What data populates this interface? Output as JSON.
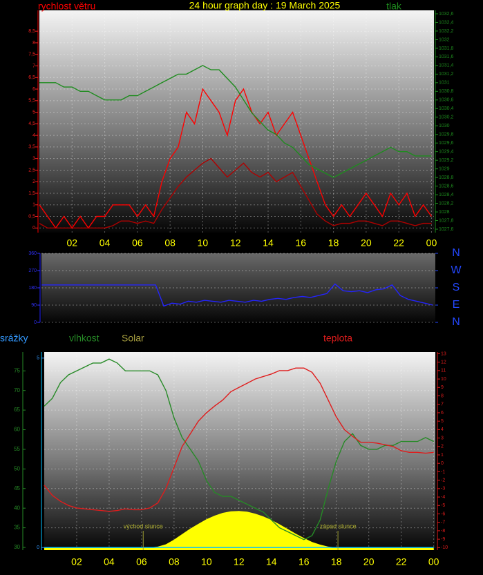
{
  "chart_data": [
    {
      "type": "line",
      "title": "24 hour graph day : 19 March 2025",
      "grid": true,
      "x": [
        0,
        0.5,
        1,
        1.5,
        2,
        2.5,
        3,
        3.5,
        4,
        4.5,
        5,
        5.5,
        6,
        6.5,
        7,
        7.5,
        8,
        8.5,
        9,
        9.5,
        10,
        10.5,
        11,
        11.5,
        12,
        12.5,
        13,
        13.5,
        14,
        14.5,
        15,
        15.5,
        16,
        16.5,
        17,
        17.5,
        18,
        18.5,
        19,
        19.5,
        20,
        20.5,
        21,
        21.5,
        22,
        22.5,
        23,
        23.5,
        24
      ],
      "xlim": [
        0,
        24.15
      ],
      "xticks": [
        {
          "value": 2,
          "label": "02"
        },
        {
          "value": 4,
          "label": "04"
        },
        {
          "value": 6,
          "label": "06"
        },
        {
          "value": 8,
          "label": "08"
        },
        10,
        12,
        14,
        16,
        18,
        20,
        22,
        {
          "value": 24,
          "label": "00"
        }
      ],
      "ylim": [
        -0.2,
        9.4
      ],
      "yticks": [
        0,
        {
          "value": 0.5,
          "label": "0,5"
        },
        1,
        {
          "value": 1.5,
          "label": "1,5"
        },
        2,
        {
          "value": 2.5,
          "label": "2,5"
        },
        3,
        {
          "value": 3.5,
          "label": "3,5"
        },
        4,
        {
          "value": 4.5,
          "label": "4,5"
        },
        5,
        {
          "value": 5.5,
          "label": "5,5"
        },
        6,
        {
          "value": 6.5,
          "label": "6,5"
        },
        7,
        {
          "value": 7.5,
          "label": "7,5"
        },
        8,
        {
          "value": 8.5,
          "label": "8,5"
        }
      ],
      "y2lim": [
        1027.52,
        1032.68
      ],
      "y2ticks": [
        {
          "value": 1027.6,
          "label": "1027,6"
        },
        {
          "value": 1027.8,
          "label": "1027,8"
        },
        1028,
        {
          "value": 1028.2,
          "label": "1028,2"
        },
        {
          "value": 1028.4,
          "label": "1028,4"
        },
        {
          "value": 1028.6,
          "label": "1028,6"
        },
        {
          "value": 1028.8,
          "label": "1028,8"
        },
        1029,
        {
          "value": 1029.2,
          "label": "1029,2"
        },
        {
          "value": 1029.4,
          "label": "1029,4"
        },
        {
          "value": 1029.6,
          "label": "1029,6"
        },
        {
          "value": 1029.8,
          "label": "1029,8"
        },
        1030,
        {
          "value": 1030.2,
          "label": "1030,2"
        },
        {
          "value": 1030.4,
          "label": "1030,4"
        },
        {
          "value": 1030.6,
          "label": "1030,6"
        },
        {
          "value": 1030.8,
          "label": "1030,8"
        },
        1031,
        {
          "value": 1031.2,
          "label": "1031,2"
        },
        {
          "value": 1031.4,
          "label": "1031,4"
        },
        {
          "value": 1031.6,
          "label": "1031,6"
        },
        {
          "value": 1031.8,
          "label": "1031,8"
        },
        1032,
        {
          "value": 1032.2,
          "label": "1032,2"
        },
        {
          "value": 1032.4,
          "label": "1032,4"
        },
        {
          "value": 1032.6,
          "label": "1032,6"
        }
      ],
      "series": [
        {
          "name": "rychlost větru",
          "color": "#ff0000",
          "values": [
            1,
            0.5,
            0,
            0.5,
            0,
            0.5,
            0,
            0.5,
            0.5,
            1,
            1,
            1,
            0.5,
            1,
            0.5,
            2,
            3,
            3.5,
            5,
            4.5,
            6,
            5.5,
            5,
            4,
            5.5,
            6,
            5,
            4.5,
            5,
            4,
            4.5,
            5,
            4,
            3,
            2,
            1,
            0.5,
            1,
            0.5,
            1,
            1.5,
            1,
            0.5,
            1.5,
            1,
            1.5,
            0.5,
            1,
            0.5
          ]
        },
        {
          "color": "#b00000",
          "values": [
            0.2,
            0,
            0,
            0,
            0,
            0,
            0,
            0,
            0,
            0.1,
            0.3,
            0.3,
            0.2,
            0.3,
            0.2,
            0.8,
            1.3,
            1.8,
            2.2,
            2.5,
            2.8,
            3,
            2.6,
            2.2,
            2.5,
            2.8,
            2.4,
            2.2,
            2.4,
            2,
            2.2,
            2.4,
            1.8,
            1.2,
            0.6,
            0.3,
            0.1,
            0.2,
            0.2,
            0.3,
            0.3,
            0.2,
            0.1,
            0.3,
            0.3,
            0.2,
            0.1,
            0.2,
            0.2
          ]
        },
        {
          "name": "tlak",
          "color": "#1e8c1e",
          "axis": "y2",
          "values": [
            1031.0,
            1031.0,
            1031.0,
            1030.9,
            1030.9,
            1030.8,
            1030.8,
            1030.7,
            1030.6,
            1030.6,
            1030.6,
            1030.7,
            1030.7,
            1030.8,
            1030.9,
            1031.0,
            1031.1,
            1031.2,
            1031.2,
            1031.3,
            1031.4,
            1031.3,
            1031.3,
            1031.1,
            1030.9,
            1030.6,
            1030.3,
            1030.1,
            1029.9,
            1029.8,
            1029.6,
            1029.5,
            1029.3,
            1029.1,
            1029.0,
            1028.9,
            1028.8,
            1028.9,
            1029.0,
            1029.1,
            1029.2,
            1029.3,
            1029.4,
            1029.5,
            1029.4,
            1029.4,
            1029.3,
            1029.3,
            1029.3
          ]
        }
      ]
    },
    {
      "type": "line",
      "grid": true,
      "x": [
        0,
        0.5,
        1,
        1.5,
        2,
        2.5,
        3,
        3.5,
        4,
        4.5,
        5,
        5.5,
        6,
        6.5,
        7,
        7.5,
        8,
        8.5,
        9,
        9.5,
        10,
        10.5,
        11,
        11.5,
        12,
        12.5,
        13,
        13.5,
        14,
        14.5,
        15,
        15.5,
        16,
        16.5,
        17,
        17.5,
        18,
        18.5,
        19,
        19.5,
        20,
        20.5,
        21,
        21.5,
        22,
        22.5,
        23,
        23.5,
        24
      ],
      "xlim": [
        0,
        24.15
      ],
      "ylim": [
        0,
        360
      ],
      "yticks": [
        0,
        90,
        180,
        270,
        360
      ],
      "y2lim": [
        0,
        360
      ],
      "y2ticks": [
        {
          "value": 360,
          "label": "N"
        },
        {
          "value": 270,
          "label": "W"
        },
        {
          "value": 180,
          "label": "S"
        },
        {
          "value": 90,
          "label": "E"
        },
        {
          "value": 0,
          "label": "N"
        }
      ],
      "series": [
        {
          "color": "#2424ff",
          "values": [
            195,
            195,
            195,
            195,
            195,
            195,
            195,
            195,
            195,
            195,
            195,
            195,
            195,
            195,
            195,
            85,
            100,
            95,
            110,
            105,
            115,
            110,
            105,
            115,
            110,
            105,
            115,
            110,
            120,
            125,
            120,
            130,
            135,
            130,
            140,
            150,
            200,
            165,
            160,
            165,
            155,
            170,
            175,
            195,
            140,
            120,
            110,
            100,
            90
          ]
        }
      ]
    },
    {
      "type": "line",
      "grid": true,
      "x": [
        0,
        0.5,
        1,
        1.5,
        2,
        2.5,
        3,
        3.5,
        4,
        4.5,
        5,
        5.5,
        6,
        6.5,
        7,
        7.5,
        8,
        8.5,
        9,
        9.5,
        10,
        10.5,
        11,
        11.5,
        12,
        12.5,
        13,
        13.5,
        14,
        14.5,
        15,
        15.5,
        16,
        16.5,
        17,
        17.5,
        18,
        18.5,
        19,
        19.5,
        20,
        20.5,
        21,
        21.5,
        22,
        22.5,
        23,
        23.5,
        24
      ],
      "xlim": [
        0,
        24.1
      ],
      "xticks": [
        {
          "value": 2,
          "label": "02"
        },
        {
          "value": 4,
          "label": "04"
        },
        {
          "value": 6,
          "label": "06"
        },
        {
          "value": 8,
          "label": "08"
        },
        10,
        12,
        14,
        16,
        18,
        20,
        22,
        {
          "value": 24,
          "label": "00"
        }
      ],
      "ylim": [
        29.3,
        79.8
      ],
      "yticks": [
        30,
        35,
        40,
        45,
        50,
        55,
        60,
        65,
        70,
        75
      ],
      "y2lim": [
        -10.3,
        13.2
      ],
      "y2ticks": [
        -10,
        -9,
        -8,
        -7,
        -6,
        -5,
        -4,
        -3,
        -2,
        -1,
        0,
        1,
        2,
        3,
        4,
        5,
        6,
        7,
        8,
        9,
        10,
        11,
        12,
        13
      ],
      "y3lim": [
        -0.07,
        5.16
      ],
      "y3ticks": [
        0,
        5
      ],
      "annotations": [
        {
          "text": "východ slunce",
          "x": 6.1
        },
        {
          "text": "západ slunce",
          "x": 18.1
        }
      ],
      "series": [
        {
          "name": "srážky",
          "color": "#00bfff",
          "axis": "y3",
          "values": [
            0,
            0,
            0,
            0,
            0,
            0,
            0,
            0,
            0,
            0,
            0,
            0,
            0,
            0,
            0,
            0,
            0,
            0,
            0,
            0,
            0,
            0,
            0,
            0,
            0,
            0,
            0,
            0,
            0,
            0,
            0,
            0,
            0,
            0,
            0,
            0,
            0,
            0,
            0,
            0,
            0,
            0,
            0,
            0,
            0,
            0,
            0,
            0,
            0
          ]
        },
        {
          "name": "vlhkost",
          "color": "#268a26",
          "values": [
            66,
            68,
            72,
            74,
            75,
            76,
            77,
            77,
            78,
            77,
            75,
            75,
            75,
            75,
            74,
            70,
            63,
            58,
            55,
            52,
            47,
            44,
            43,
            43,
            42,
            41,
            40,
            39,
            37,
            35,
            34,
            33,
            32,
            33,
            37,
            45,
            52,
            57,
            59,
            56,
            55,
            55,
            56,
            56,
            57,
            57,
            57,
            58,
            57
          ]
        },
        {
          "name": "Solar",
          "color": "#ffff00",
          "type": "area",
          "values": [
            30,
            30,
            30,
            30,
            30,
            30,
            30,
            30,
            30,
            30,
            30,
            30,
            30,
            30,
            30.2,
            30.8,
            32,
            33.4,
            34.8,
            36,
            37.2,
            38.1,
            38.8,
            39.2,
            39.3,
            39.1,
            38.6,
            37.9,
            37,
            35.9,
            34.7,
            33.5,
            32.4,
            31.4,
            30.7,
            30.2,
            30,
            30,
            30,
            30,
            30,
            30,
            30,
            30,
            30,
            30,
            30,
            30,
            30
          ]
        },
        {
          "name": "teplota",
          "color": "#e01c1c",
          "axis": "y2",
          "values": [
            -2.6,
            -3.8,
            -4.5,
            -5,
            -5.3,
            -5.4,
            -5.5,
            -5.6,
            -5.7,
            -5.6,
            -5.4,
            -5.5,
            -5.5,
            -5.3,
            -4.7,
            -3,
            -0.5,
            2,
            3.5,
            5,
            6,
            6.8,
            7.5,
            8.5,
            9,
            9.5,
            10,
            10.3,
            10.6,
            11,
            11,
            11.3,
            11.3,
            10.8,
            9.5,
            7.5,
            5.5,
            4,
            3.2,
            2.5,
            2.5,
            2.4,
            2.2,
            2,
            1.5,
            1.3,
            1.3,
            1.2,
            1.3
          ]
        }
      ]
    }
  ]
}
